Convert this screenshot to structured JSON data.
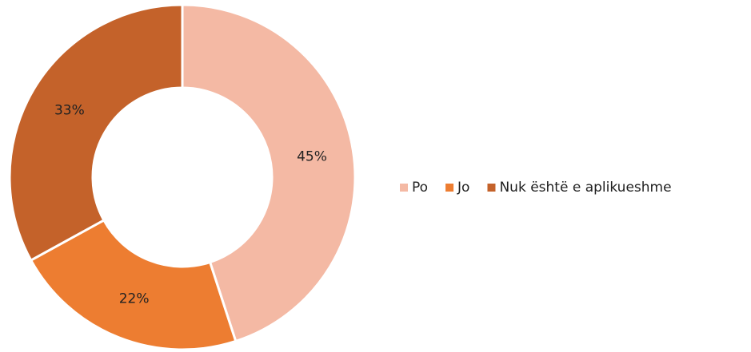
{
  "chart_data": {
    "type": "doughnut",
    "categories": [
      "Po",
      "Jo",
      "Nuk është e aplikueshme"
    ],
    "values": [
      45,
      22,
      33
    ],
    "value_labels": [
      "45%",
      "22%",
      "33%"
    ],
    "colors": [
      "#f4b9a4",
      "#ed7d31",
      "#c4622a"
    ],
    "legend": "right"
  }
}
